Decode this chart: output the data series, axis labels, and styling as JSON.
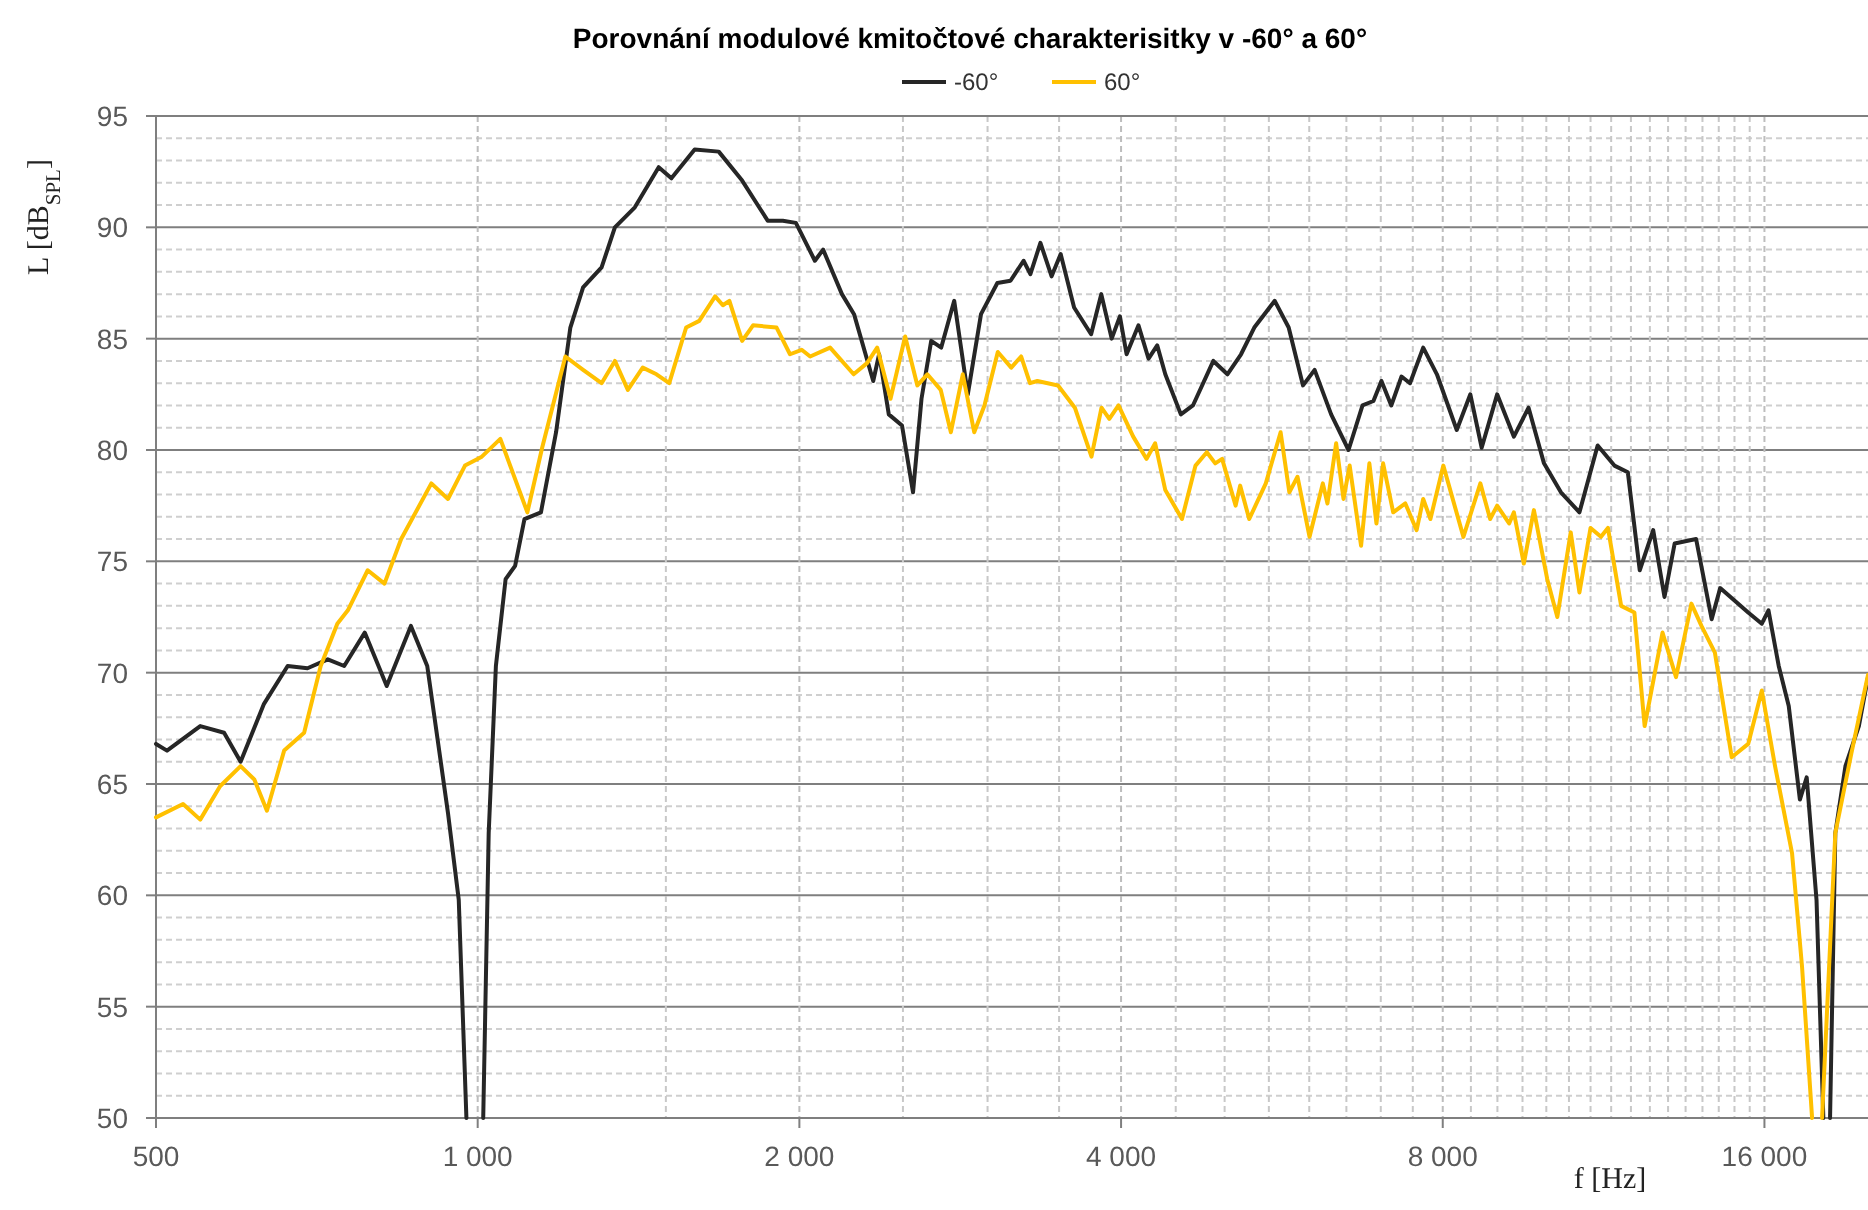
{
  "chart_data": {
    "type": "line",
    "title": "Porovnání modulové kmitočtové charakterisitky v -60° a 60°",
    "xlabel": "f [Hz]",
    "ylabel": "L [dB$_{SPL}$]",
    "log": "x",
    "grid": true,
    "legend": "top",
    "line_style": "solid",
    "xlim": [
      500,
      20000
    ],
    "xticks": [
      500,
      {
        "value": 1000,
        "label": "1 000"
      },
      {
        "value": 1500,
        "label": null
      },
      {
        "value": 2000,
        "label": "2 000"
      },
      {
        "value": 2500,
        "label": null
      },
      {
        "value": 3000,
        "label": null
      },
      {
        "value": 3500,
        "label": null
      },
      {
        "value": 4000,
        "label": "4 000"
      },
      {
        "value": 4500,
        "label": null
      },
      {
        "value": 5000,
        "label": null
      },
      {
        "value": 5500,
        "label": null
      },
      {
        "value": 6000,
        "label": null
      },
      {
        "value": 6500,
        "label": null
      },
      {
        "value": 7000,
        "label": null
      },
      {
        "value": 7500,
        "label": null
      },
      {
        "value": 8000,
        "label": "8 000"
      },
      {
        "value": 8500,
        "label": null
      },
      {
        "value": 9000,
        "label": null
      },
      {
        "value": 9500,
        "label": null
      },
      {
        "value": 10000,
        "label": null
      },
      {
        "value": 10500,
        "label": null
      },
      {
        "value": 11000,
        "label": null
      },
      {
        "value": 11500,
        "label": null
      },
      {
        "value": 12000,
        "label": null
      },
      {
        "value": 12500,
        "label": null
      },
      {
        "value": 13000,
        "label": null
      },
      {
        "value": 13500,
        "label": null
      },
      {
        "value": 14000,
        "label": null
      },
      {
        "value": 14500,
        "label": null
      },
      {
        "value": 15000,
        "label": null
      },
      {
        "value": 15500,
        "label": null
      },
      {
        "value": 16000,
        "label": "16 000"
      }
    ],
    "ylim": [
      50,
      95
    ],
    "yticks": [
      50,
      {
        "value": 51,
        "label": null
      },
      {
        "value": 52,
        "label": null
      },
      {
        "value": 53,
        "label": null
      },
      {
        "value": 54,
        "label": null
      },
      55,
      {
        "value": 56,
        "label": null
      },
      {
        "value": 57,
        "label": null
      },
      {
        "value": 58,
        "label": null
      },
      {
        "value": 59,
        "label": null
      },
      60,
      {
        "value": 61,
        "label": null
      },
      {
        "value": 62,
        "label": null
      },
      {
        "value": 63,
        "label": null
      },
      {
        "value": 64,
        "label": null
      },
      65,
      {
        "value": 66,
        "label": null
      },
      {
        "value": 67,
        "label": null
      },
      {
        "value": 68,
        "label": null
      },
      {
        "value": 69,
        "label": null
      },
      70,
      {
        "value": 71,
        "label": null
      },
      {
        "value": 72,
        "label": null
      },
      {
        "value": 73,
        "label": null
      },
      {
        "value": 74,
        "label": null
      },
      75,
      {
        "value": 76,
        "label": null
      },
      {
        "value": 77,
        "label": null
      },
      {
        "value": 78,
        "label": null
      },
      {
        "value": 79,
        "label": null
      },
      80,
      {
        "value": 81,
        "label": null
      },
      {
        "value": 82,
        "label": null
      },
      {
        "value": 83,
        "label": null
      },
      {
        "value": 84,
        "label": null
      },
      85,
      {
        "value": 86,
        "label": null
      },
      {
        "value": 87,
        "label": null
      },
      {
        "value": 88,
        "label": null
      },
      {
        "value": 89,
        "label": null
      },
      90,
      {
        "value": 91,
        "label": null
      },
      {
        "value": 92,
        "label": null
      },
      {
        "value": 93,
        "label": null
      },
      {
        "value": 94,
        "label": null
      },
      95
    ],
    "series": [
      {
        "name": "-60°",
        "color": "#262626",
        "x": [
          500,
          512,
          550,
          579,
          600,
          631,
          664,
          693,
          724,
          750,
          784,
          822,
          866,
          897,
          938,
          960,
          976,
          994,
          1012,
          1024,
          1040,
          1062,
          1084,
          1106,
          1146,
          1184,
          1221,
          1255,
          1306,
          1344,
          1403,
          1477,
          1518,
          1596,
          1681,
          1768,
          1868,
          1930,
          1985,
          2068,
          2105,
          2192,
          2250,
          2345,
          2375,
          2425,
          2495,
          2555,
          2602,
          2657,
          2715,
          2792,
          2875,
          2958,
          3064,
          3152,
          3242,
          3290,
          3362,
          3444,
          3512,
          3615,
          3750,
          3833,
          3920,
          3990,
          4048,
          4153,
          4244,
          4324,
          4400,
          4550,
          4670,
          4880,
          5030,
          5180,
          5330,
          5570,
          5740,
          5920,
          6070,
          6290,
          6530,
          6730,
          6890,
          7010,
          7160,
          7320,
          7455,
          7670,
          7900,
          8245,
          8490,
          8700,
          8995,
          9325,
          9625,
          9950,
          10320,
          10740,
          11170,
          11580,
          11920,
          12230,
          12590,
          12900,
          13185,
          13810,
          14280,
          14545,
          15450,
          15910,
          16140,
          16500,
          16860,
          17270,
          17525,
          17900,
          18165,
          18300,
          18430,
          18640,
          19050,
          19610,
          20000
        ],
        "values": [
          66.8,
          66.5,
          67.6,
          67.3,
          66.0,
          68.6,
          70.3,
          70.2,
          70.6,
          70.3,
          71.8,
          69.4,
          72.1,
          70.3,
          63.7,
          59.8,
          50,
          null,
          50,
          62.8,
          70.3,
          74.2,
          74.8,
          76.9,
          77.2,
          80.8,
          85.5,
          87.3,
          88.2,
          90.0,
          90.9,
          92.7,
          92.2,
          93.5,
          93.4,
          92.1,
          90.3,
          90.3,
          90.2,
          88.5,
          89.0,
          87.0,
          86.1,
          83.1,
          84.3,
          81.6,
          81.1,
          78.1,
          82.3,
          84.9,
          84.6,
          86.7,
          82.5,
          86.1,
          87.5,
          87.6,
          88.5,
          87.9,
          89.3,
          87.8,
          88.8,
          86.4,
          85.2,
          87.0,
          85.0,
          86.0,
          84.3,
          85.6,
          84.1,
          84.7,
          83.4,
          81.6,
          82.0,
          84.0,
          83.4,
          84.3,
          85.5,
          86.7,
          85.5,
          82.9,
          83.6,
          81.6,
          80.0,
          82.0,
          82.2,
          83.1,
          82.0,
          83.3,
          83.0,
          84.6,
          83.4,
          80.9,
          82.5,
          80.1,
          82.5,
          80.6,
          81.9,
          79.4,
          78.1,
          77.2,
          80.2,
          79.3,
          79.0,
          74.6,
          76.4,
          73.4,
          75.8,
          76.0,
          72.4,
          73.8,
          72.7,
          72.2,
          72.8,
          70.3,
          68.5,
          64.3,
          65.3,
          59.8,
          50,
          null,
          50,
          62.8,
          65.8,
          67.6,
          69.8
        ]
      },
      {
        "name": "60°",
        "color": "#ffc000",
        "x": [
          500,
          530,
          550,
          574,
          600,
          618,
          635,
          659,
          688,
          713,
          739,
          756,
          789,
          818,
          848,
          905,
          938,
          973,
          1009,
          1050,
          1113,
          1149,
          1208,
          1255,
          1306,
          1344,
          1382,
          1427,
          1470,
          1511,
          1567,
          1612,
          1668,
          1696,
          1720,
          1768,
          1810,
          1904,
          1960,
          2010,
          2047,
          2137,
          2248,
          2314,
          2365,
          2434,
          2512,
          2579,
          2635,
          2712,
          2772,
          2844,
          2915,
          2980,
          3067,
          3157,
          3225,
          3287,
          3340,
          3492,
          3621,
          3753,
          3835,
          3900,
          3978,
          4106,
          4226,
          4305,
          4400,
          4561,
          4696,
          4812,
          4900,
          4973,
          5120,
          5170,
          5272,
          5464,
          5641,
          5748,
          5850,
          6004,
          6178,
          6240,
          6358,
          6460,
          6546,
          6709,
          6830,
          6935,
          7035,
          7190,
          7380,
          7562,
          7670,
          7790,
          8010,
          8364,
          8675,
          8860,
          8995,
          9230,
          9325,
          9527,
          9736,
          10020,
          10240,
          10540,
          10740,
          11000,
          11250,
          11420,
          11750,
          12090,
          12360,
          12845,
          13225,
          13670,
          13970,
          14380,
          14910,
          15450,
          15910,
          16370,
          16980,
          17350,
          17730,
          17920,
          18115,
          18640,
          19300,
          20000
        ],
        "values": [
          63.5,
          64.1,
          63.4,
          64.9,
          65.8,
          65.2,
          63.8,
          66.5,
          67.3,
          70.3,
          72.2,
          72.8,
          74.6,
          74.0,
          76.0,
          78.5,
          77.8,
          79.3,
          79.7,
          80.5,
          77.2,
          80.1,
          84.2,
          83.6,
          83.0,
          84.0,
          82.7,
          83.7,
          83.4,
          83.0,
          85.5,
          85.8,
          86.9,
          86.5,
          86.7,
          84.9,
          85.6,
          85.5,
          84.3,
          84.5,
          84.2,
          84.6,
          83.4,
          83.9,
          84.6,
          82.3,
          85.1,
          82.9,
          83.4,
          82.7,
          80.8,
          83.4,
          80.8,
          82.0,
          84.4,
          83.7,
          84.2,
          83.0,
          83.1,
          82.9,
          81.9,
          79.7,
          81.9,
          81.4,
          82.0,
          80.6,
          79.6,
          80.3,
          78.2,
          76.9,
          79.3,
          79.9,
          79.4,
          79.6,
          77.5,
          78.4,
          76.9,
          78.5,
          80.8,
          78.1,
          78.8,
          76.1,
          78.5,
          77.6,
          80.3,
          77.8,
          79.3,
          75.7,
          79.4,
          76.7,
          79.4,
          77.2,
          77.6,
          76.4,
          77.8,
          76.9,
          79.3,
          76.1,
          78.5,
          76.9,
          77.5,
          76.7,
          77.2,
          74.9,
          77.3,
          74.2,
          72.5,
          76.3,
          73.6,
          76.5,
          76.1,
          76.5,
          73.0,
          72.7,
          67.6,
          71.8,
          69.8,
          73.1,
          72.1,
          70.9,
          66.2,
          66.8,
          69.2,
          65.8,
          61.9,
          56.8,
          50,
          null,
          50,
          62.8,
          66.4,
          69.9
        ]
      }
    ]
  }
}
